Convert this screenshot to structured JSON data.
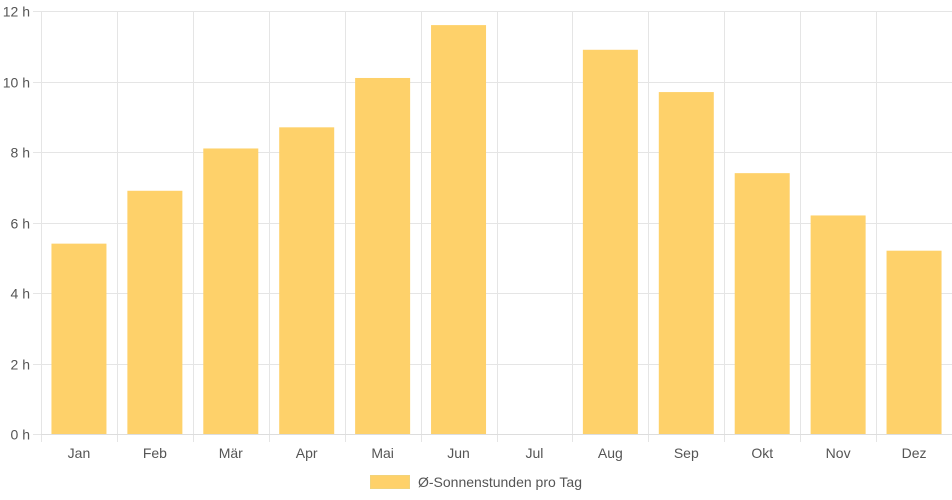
{
  "chart_data": {
    "type": "bar",
    "categories": [
      "Jan",
      "Feb",
      "Mär",
      "Apr",
      "Mai",
      "Jun",
      "Jul",
      "Aug",
      "Sep",
      "Okt",
      "Nov",
      "Dez"
    ],
    "series": [
      {
        "name": "Ø-Sonnenstunden pro Tag",
        "values": [
          5.4,
          6.9,
          8.1,
          8.7,
          10.1,
          11.6,
          null,
          10.9,
          9.7,
          7.4,
          6.2,
          5.2
        ],
        "color": "#fed16a"
      }
    ],
    "ylim": [
      0,
      12
    ],
    "yticks": [
      0,
      2,
      4,
      6,
      8,
      10,
      12
    ],
    "ytick_suffix": " h",
    "grid": true,
    "legend_position": "bottom"
  }
}
